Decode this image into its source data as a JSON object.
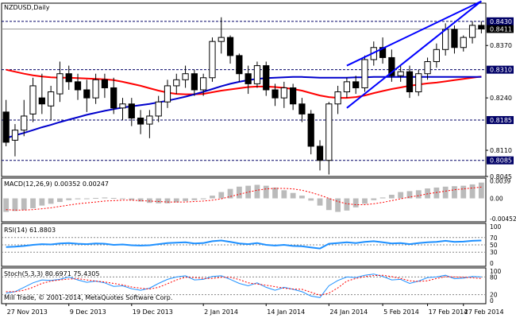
{
  "chart_data": {
    "type": "candlestick",
    "title": "NZDUSD,Daily",
    "copyright": "Mill Trade, © 2001-2014, MetaQuotes Software Corp.",
    "x_tick_labels": [
      "27 Nov 2013",
      "9 Dec 2013",
      "19 Dec 2013",
      "2 Jan 2014",
      "14 Jan 2014",
      "24 Jan 2014",
      "5 Feb 2014",
      "17 Feb 2014",
      "27 Feb 2014"
    ],
    "price_axis": {
      "ylim": [
        0.8045,
        0.8475
      ],
      "ticks": [
        "0.8370",
        "0.8240",
        "0.8110",
        "0.8045"
      ],
      "levels": [
        {
          "label": "0.8430",
          "value": 0.843
        },
        {
          "label": "0.8411",
          "value": 0.8411
        },
        {
          "label": "0.8310",
          "value": 0.831
        },
        {
          "label": "0.8185",
          "value": 0.8185
        },
        {
          "label": "0.8085",
          "value": 0.8085
        }
      ],
      "current_price": "0.8411"
    },
    "candles": [
      {
        "o": 0.8205,
        "h": 0.8235,
        "l": 0.812,
        "c": 0.813
      },
      {
        "o": 0.8135,
        "h": 0.8175,
        "l": 0.8095,
        "c": 0.816
      },
      {
        "o": 0.816,
        "h": 0.8235,
        "l": 0.8145,
        "c": 0.8195
      },
      {
        "o": 0.82,
        "h": 0.829,
        "l": 0.818,
        "c": 0.827
      },
      {
        "o": 0.824,
        "h": 0.83,
        "l": 0.82,
        "c": 0.8225
      },
      {
        "o": 0.822,
        "h": 0.827,
        "l": 0.8185,
        "c": 0.8255
      },
      {
        "o": 0.825,
        "h": 0.833,
        "l": 0.823,
        "c": 0.83
      },
      {
        "o": 0.83,
        "h": 0.832,
        "l": 0.826,
        "c": 0.828
      },
      {
        "o": 0.828,
        "h": 0.83,
        "l": 0.8235,
        "c": 0.826
      },
      {
        "o": 0.826,
        "h": 0.8285,
        "l": 0.8205,
        "c": 0.824
      },
      {
        "o": 0.824,
        "h": 0.83,
        "l": 0.8225,
        "c": 0.8285
      },
      {
        "o": 0.8285,
        "h": 0.83,
        "l": 0.824,
        "c": 0.8265
      },
      {
        "o": 0.8265,
        "h": 0.829,
        "l": 0.82,
        "c": 0.8215
      },
      {
        "o": 0.8215,
        "h": 0.824,
        "l": 0.8185,
        "c": 0.8225
      },
      {
        "o": 0.8225,
        "h": 0.824,
        "l": 0.817,
        "c": 0.819
      },
      {
        "o": 0.819,
        "h": 0.821,
        "l": 0.815,
        "c": 0.8175
      },
      {
        "o": 0.8175,
        "h": 0.821,
        "l": 0.814,
        "c": 0.8195
      },
      {
        "o": 0.8195,
        "h": 0.8245,
        "l": 0.818,
        "c": 0.823
      },
      {
        "o": 0.823,
        "h": 0.8285,
        "l": 0.8215,
        "c": 0.827
      },
      {
        "o": 0.827,
        "h": 0.83,
        "l": 0.825,
        "c": 0.8285
      },
      {
        "o": 0.8285,
        "h": 0.832,
        "l": 0.8265,
        "c": 0.83
      },
      {
        "o": 0.83,
        "h": 0.831,
        "l": 0.8245,
        "c": 0.826
      },
      {
        "o": 0.826,
        "h": 0.83,
        "l": 0.8245,
        "c": 0.829
      },
      {
        "o": 0.829,
        "h": 0.839,
        "l": 0.828,
        "c": 0.838
      },
      {
        "o": 0.838,
        "h": 0.844,
        "l": 0.835,
        "c": 0.839
      },
      {
        "o": 0.839,
        "h": 0.8395,
        "l": 0.8325,
        "c": 0.8345
      },
      {
        "o": 0.8345,
        "h": 0.835,
        "l": 0.828,
        "c": 0.83
      },
      {
        "o": 0.83,
        "h": 0.832,
        "l": 0.825,
        "c": 0.8275
      },
      {
        "o": 0.8275,
        "h": 0.833,
        "l": 0.8265,
        "c": 0.832
      },
      {
        "o": 0.832,
        "h": 0.833,
        "l": 0.8245,
        "c": 0.826
      },
      {
        "o": 0.826,
        "h": 0.8275,
        "l": 0.822,
        "c": 0.824
      },
      {
        "o": 0.824,
        "h": 0.828,
        "l": 0.8215,
        "c": 0.8265
      },
      {
        "o": 0.8265,
        "h": 0.8275,
        "l": 0.821,
        "c": 0.8225
      },
      {
        "o": 0.8225,
        "h": 0.824,
        "l": 0.818,
        "c": 0.82
      },
      {
        "o": 0.82,
        "h": 0.821,
        "l": 0.81,
        "c": 0.812
      },
      {
        "o": 0.812,
        "h": 0.8135,
        "l": 0.806,
        "c": 0.8085
      },
      {
        "o": 0.8085,
        "h": 0.823,
        "l": 0.805,
        "c": 0.8225
      },
      {
        "o": 0.8225,
        "h": 0.827,
        "l": 0.82,
        "c": 0.8255
      },
      {
        "o": 0.8255,
        "h": 0.829,
        "l": 0.824,
        "c": 0.828
      },
      {
        "o": 0.828,
        "h": 0.8295,
        "l": 0.825,
        "c": 0.8265
      },
      {
        "o": 0.8265,
        "h": 0.8345,
        "l": 0.8255,
        "c": 0.8335
      },
      {
        "o": 0.8335,
        "h": 0.838,
        "l": 0.832,
        "c": 0.8365
      },
      {
        "o": 0.8365,
        "h": 0.839,
        "l": 0.8325,
        "c": 0.834
      },
      {
        "o": 0.834,
        "h": 0.836,
        "l": 0.828,
        "c": 0.8295
      },
      {
        "o": 0.8295,
        "h": 0.832,
        "l": 0.828,
        "c": 0.8305
      },
      {
        "o": 0.8305,
        "h": 0.832,
        "l": 0.824,
        "c": 0.8255
      },
      {
        "o": 0.8255,
        "h": 0.831,
        "l": 0.8245,
        "c": 0.83
      },
      {
        "o": 0.83,
        "h": 0.834,
        "l": 0.8285,
        "c": 0.833
      },
      {
        "o": 0.833,
        "h": 0.8375,
        "l": 0.8315,
        "c": 0.836
      },
      {
        "o": 0.836,
        "h": 0.8425,
        "l": 0.8345,
        "c": 0.841
      },
      {
        "o": 0.841,
        "h": 0.842,
        "l": 0.835,
        "c": 0.8365
      },
      {
        "o": 0.8365,
        "h": 0.8395,
        "l": 0.8355,
        "c": 0.839
      },
      {
        "o": 0.839,
        "h": 0.843,
        "l": 0.8375,
        "c": 0.842
      },
      {
        "o": 0.842,
        "h": 0.843,
        "l": 0.84,
        "c": 0.8411
      }
    ],
    "series": [
      {
        "name": "",
        "color": "#ff0000",
        "values": [
          0.831,
          0.8305,
          0.83,
          0.8296,
          0.8293,
          0.8291,
          0.829,
          0.829,
          0.8289,
          0.8288,
          0.8287,
          0.8286,
          0.8284,
          0.828,
          0.8275,
          0.827,
          0.8264,
          0.8258,
          0.8253,
          0.825,
          0.8249,
          0.8249,
          0.825,
          0.8254,
          0.8258,
          0.8261,
          0.8264,
          0.8267,
          0.8268,
          0.8268,
          0.8267,
          0.8265,
          0.8262,
          0.8258,
          0.8252,
          0.8246,
          0.8242,
          0.824,
          0.824,
          0.8242,
          0.8246,
          0.8252,
          0.8257,
          0.8262,
          0.8266,
          0.827,
          0.8273,
          0.8276,
          0.8278,
          0.8281,
          0.8284,
          0.8287,
          0.829,
          0.8293
        ]
      },
      {
        "name": "",
        "color": "#0000cc",
        "values": [
          0.814,
          0.8147,
          0.8153,
          0.816,
          0.8167,
          0.8173,
          0.818,
          0.8186,
          0.8192,
          0.8198,
          0.8203,
          0.8208,
          0.8212,
          0.8216,
          0.8219,
          0.8222,
          0.8225,
          0.8229,
          0.8233,
          0.8238,
          0.8243,
          0.8249,
          0.8255,
          0.8262,
          0.8269,
          0.8275,
          0.828,
          0.8284,
          0.8287,
          0.8289,
          0.829,
          0.8291,
          0.8292,
          0.8292,
          0.8291,
          0.829,
          0.829,
          0.829,
          0.829,
          0.8291,
          0.8291,
          0.8292,
          0.8292,
          0.8292,
          0.8292,
          0.8292,
          0.8292,
          0.8292,
          0.8292,
          0.8292,
          0.8292,
          0.8292,
          0.8292,
          0.8292
        ]
      }
    ],
    "trend_channel": {
      "color": "#0000ff",
      "upper": [
        {
          "i": 38,
          "v": 0.832
        },
        {
          "i": 53,
          "v": 0.848
        }
      ],
      "lower": [
        {
          "i": 38,
          "v": 0.8215
        },
        {
          "i": 53,
          "v": 0.848
        }
      ]
    },
    "macd": {
      "label": "MACD(12,26,9) 0.00352 0.00247",
      "ticks": [
        "0.0039",
        "0.00",
        "-0.00452"
      ],
      "ylim": [
        -0.0052,
        0.0045
      ],
      "histogram": [
        -0.003,
        -0.0028,
        -0.0026,
        -0.0022,
        -0.0016,
        -0.0012,
        -0.0008,
        -0.0004,
        -0.0002,
        -0.0001,
        0.0001,
        0.0002,
        0.0001,
        -0.0001,
        -0.0004,
        -0.0007,
        -0.001,
        -0.0011,
        -0.0011,
        -0.0009,
        -0.0006,
        -0.0004,
        -0.0002,
        0.0006,
        0.0014,
        0.0021,
        0.0026,
        0.0028,
        0.003,
        0.0028,
        0.0024,
        0.0018,
        0.0012,
        0.0006,
        -0.0005,
        -0.0016,
        -0.0026,
        -0.003,
        -0.0027,
        -0.002,
        -0.0012,
        -0.0004,
        0.0002,
        0.0008,
        0.0014,
        0.0016,
        0.0018,
        0.0022,
        0.0024,
        0.0026,
        0.0027,
        0.0028,
        0.0031,
        0.0035
      ],
      "signal": [
        -0.0025,
        -0.0026,
        -0.0026,
        -0.0025,
        -0.0023,
        -0.0021,
        -0.0018,
        -0.0015,
        -0.0012,
        -0.001,
        -0.0008,
        -0.0006,
        -0.0005,
        -0.0004,
        -0.0004,
        -0.0005,
        -0.0006,
        -0.0007,
        -0.0008,
        -0.0008,
        -0.0008,
        -0.0007,
        -0.0006,
        -0.0004,
        -0.0001,
        0.0004,
        0.0009,
        0.0014,
        0.0018,
        0.0021,
        0.0022,
        0.0022,
        0.0021,
        0.0018,
        0.0013,
        0.0007,
        0.0,
        -0.0007,
        -0.0012,
        -0.0014,
        -0.0014,
        -0.0012,
        -0.0009,
        -0.0005,
        -0.0001,
        0.0003,
        0.0006,
        0.001,
        0.0013,
        0.0016,
        0.0019,
        0.0021,
        0.0023,
        0.0025
      ]
    },
    "rsi": {
      "label": "RSI(14) 61.8803",
      "ticks": [
        "100",
        "70",
        "50",
        "30",
        "0"
      ],
      "levels": [
        70,
        50,
        30
      ],
      "values": [
        44,
        45,
        47,
        50,
        52,
        51,
        54,
        55,
        53,
        52,
        54,
        53,
        50,
        51,
        49,
        48,
        49,
        52,
        55,
        56,
        57,
        54,
        55,
        60,
        62,
        58,
        54,
        52,
        55,
        50,
        48,
        50,
        47,
        46,
        43,
        40,
        53,
        55,
        57,
        55,
        58,
        60,
        57,
        54,
        55,
        52,
        55,
        57,
        58,
        61,
        58,
        59,
        61,
        62
      ]
    },
    "stoch": {
      "label": "Stoch(5,3,3) 80.6971 75.4305",
      "ticks": [
        "100",
        "80",
        "20",
        "0"
      ],
      "levels": [
        80,
        20
      ],
      "main": [
        25,
        30,
        45,
        60,
        70,
        68,
        72,
        80,
        70,
        62,
        66,
        60,
        48,
        50,
        40,
        35,
        42,
        58,
        72,
        80,
        84,
        70,
        72,
        82,
        84,
        72,
        58,
        50,
        60,
        45,
        35,
        45,
        38,
        30,
        15,
        10,
        50,
        68,
        80,
        78,
        86,
        90,
        82,
        70,
        72,
        58,
        66,
        78,
        80,
        86,
        74,
        76,
        82,
        80
      ],
      "signal": [
        30,
        30,
        35,
        45,
        58,
        66,
        70,
        73,
        74,
        70,
        66,
        63,
        58,
        53,
        46,
        42,
        39,
        45,
        57,
        70,
        79,
        78,
        75,
        75,
        79,
        79,
        71,
        60,
        56,
        52,
        47,
        42,
        39,
        38,
        28,
        18,
        25,
        43,
        66,
        75,
        81,
        85,
        86,
        81,
        75,
        67,
        65,
        67,
        75,
        81,
        80,
        79,
        77,
        75
      ]
    }
  }
}
